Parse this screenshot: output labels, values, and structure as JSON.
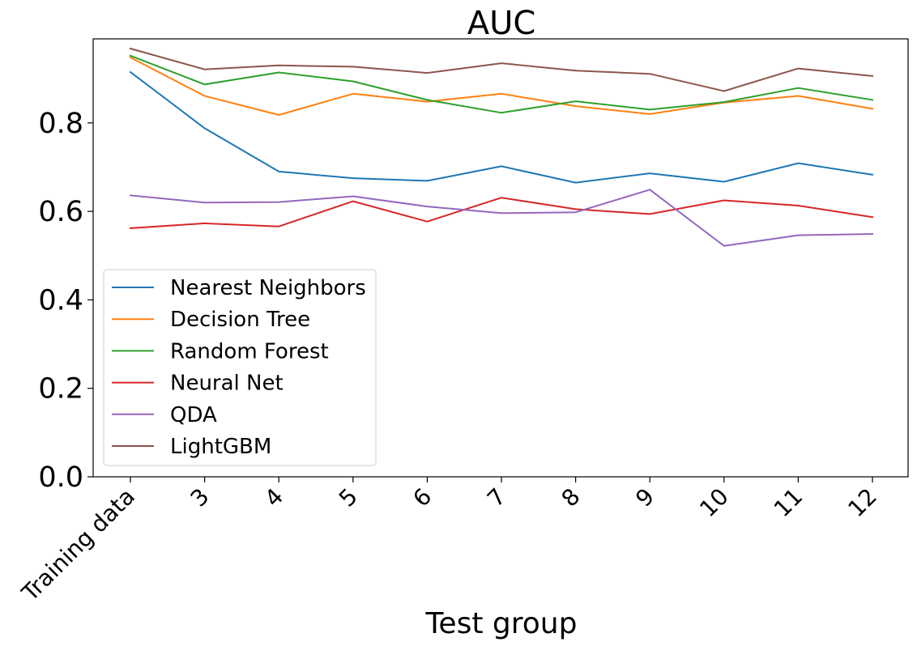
{
  "chart_data": {
    "type": "line",
    "title": "AUC",
    "xlabel": "Test group",
    "ylabel": "",
    "categories": [
      "Training data",
      "3",
      "4",
      "5",
      "6",
      "7",
      "8",
      "9",
      "10",
      "11",
      "12"
    ],
    "ylim": [
      0.0,
      0.99
    ],
    "yticks": [
      "0.0",
      "0.2",
      "0.4",
      "0.6",
      "0.8"
    ],
    "grid": false,
    "legend_position": "lower-left",
    "series": [
      {
        "name": "Nearest Neighbors",
        "color": "#1f77b4",
        "values": [
          0.915,
          0.788,
          0.69,
          0.675,
          0.669,
          0.702,
          0.665,
          0.686,
          0.667,
          0.709,
          0.683
        ]
      },
      {
        "name": "Decision Tree",
        "color": "#ff7f0e",
        "values": [
          0.948,
          0.861,
          0.818,
          0.866,
          0.848,
          0.866,
          0.838,
          0.82,
          0.846,
          0.861,
          0.832
        ]
      },
      {
        "name": "Random Forest",
        "color": "#2ca02c",
        "values": [
          0.952,
          0.887,
          0.914,
          0.894,
          0.852,
          0.823,
          0.849,
          0.83,
          0.847,
          0.879,
          0.852
        ]
      },
      {
        "name": "Neural Net",
        "color": "#d62728",
        "values": [
          0.562,
          0.573,
          0.566,
          0.623,
          0.577,
          0.631,
          0.605,
          0.594,
          0.625,
          0.613,
          0.587
        ]
      },
      {
        "name": "QDA",
        "color": "#9467bd",
        "values": [
          0.636,
          0.62,
          0.621,
          0.634,
          0.611,
          0.596,
          0.598,
          0.649,
          0.522,
          0.546,
          0.549
        ]
      },
      {
        "name": "LightGBM",
        "color": "#8c564b",
        "values": [
          0.968,
          0.921,
          0.93,
          0.927,
          0.913,
          0.935,
          0.918,
          0.911,
          0.872,
          0.923,
          0.906
        ]
      }
    ]
  }
}
